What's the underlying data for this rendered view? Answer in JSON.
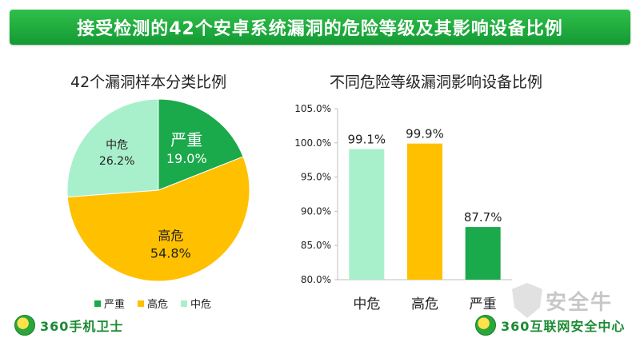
{
  "header": {
    "title": "接受检测的42个安卓系统漏洞的危险等级及其影响设备比例"
  },
  "colors": {
    "title_bar": "#1aa53a",
    "severe": "#1aa94b",
    "high": "#ffc000",
    "medium": "#a8f0cc"
  },
  "chart_data": [
    {
      "type": "pie",
      "title": "42个漏洞样本分类比例",
      "slices": [
        {
          "name": "严重",
          "value": 19.0,
          "label": "19.0%",
          "color": "#1aa94b"
        },
        {
          "name": "高危",
          "value": 54.8,
          "label": "54.8%",
          "color": "#ffc000"
        },
        {
          "name": "中危",
          "value": 26.2,
          "label": "26.2%",
          "color": "#a8f0cc"
        }
      ],
      "legend": [
        "严重",
        "高危",
        "中危"
      ],
      "legend_position": "bottom"
    },
    {
      "type": "bar",
      "title": "不同危险等级漏洞影响设备比例",
      "categories": [
        "中危",
        "高危",
        "严重"
      ],
      "values": [
        99.1,
        99.9,
        87.7
      ],
      "data_labels": [
        "99.1%",
        "99.9%",
        "87.7%"
      ],
      "colors": [
        "#a8f0cc",
        "#ffc000",
        "#1aa94b"
      ],
      "ylim": [
        80,
        105
      ],
      "yticks": [
        "80.0%",
        "85.0%",
        "90.0%",
        "95.0%",
        "100.0%",
        "105.0%"
      ],
      "ytick_values": [
        80,
        85,
        90,
        95,
        100,
        105
      ],
      "grid": false
    }
  ],
  "branding": {
    "left": "360手机卫士",
    "right": "360互联网安全中心",
    "watermark": "安全牛"
  }
}
